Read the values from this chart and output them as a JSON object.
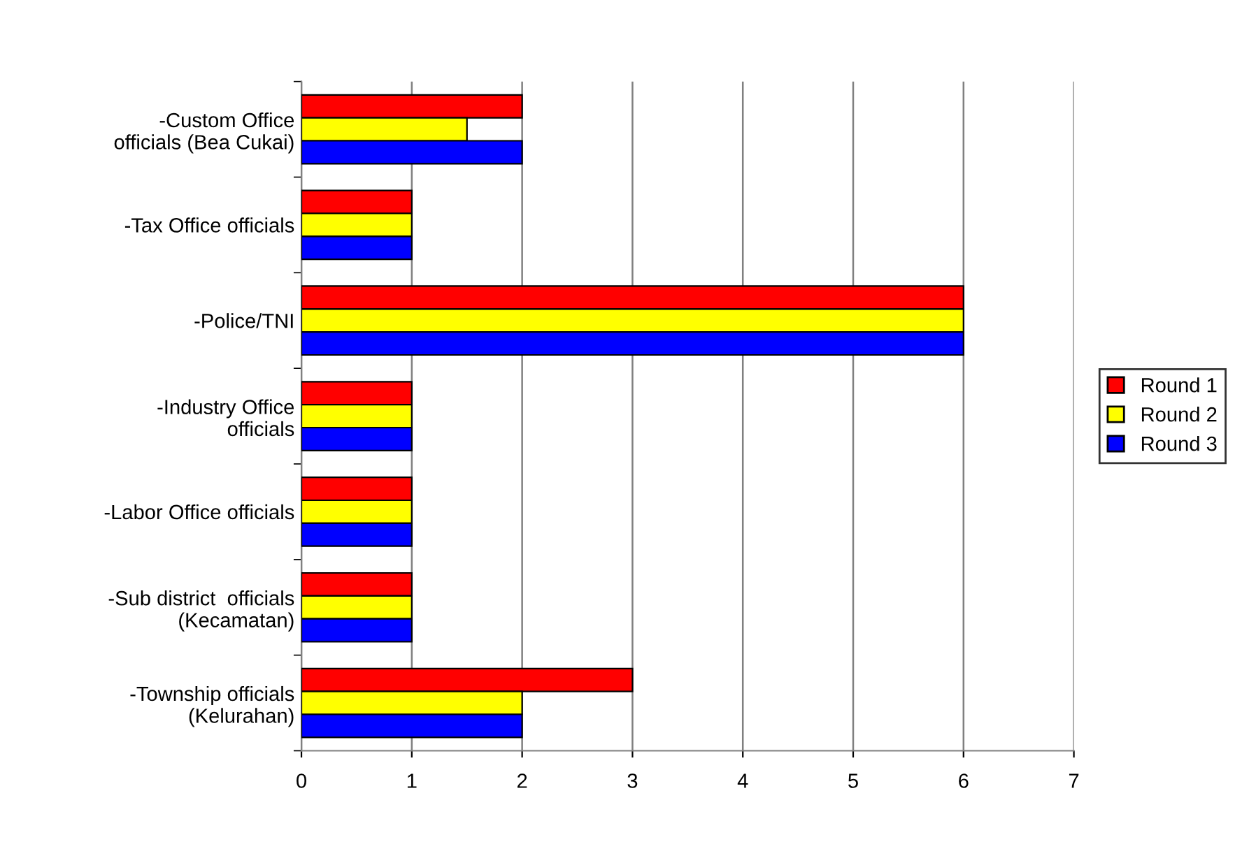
{
  "chart_data": {
    "type": "bar",
    "orientation": "horizontal",
    "categories": [
      "-Custom Office\nofficials (Bea Cukai)",
      "-Tax Office officials",
      "-Police/TNI",
      "-Industry Office\nofficials",
      "-Labor Office officials",
      "-Sub district  officials\n(Kecamatan)",
      "-Township officials\n(Kelurahan)"
    ],
    "series": [
      {
        "name": "Round 1",
        "color": "#ff0000",
        "values": [
          2,
          1,
          6,
          1,
          1,
          1,
          3
        ]
      },
      {
        "name": "Round 2",
        "color": "#ffff00",
        "values": [
          1.5,
          1,
          6,
          1,
          1,
          1,
          2
        ]
      },
      {
        "name": "Round 3",
        "color": "#0000ff",
        "values": [
          2,
          1,
          6,
          1,
          1,
          1,
          2
        ]
      }
    ],
    "xlim": [
      0,
      7
    ],
    "xticks": [
      0,
      1,
      2,
      3,
      4,
      5,
      6,
      7
    ],
    "grid": "x",
    "legend": "right"
  }
}
